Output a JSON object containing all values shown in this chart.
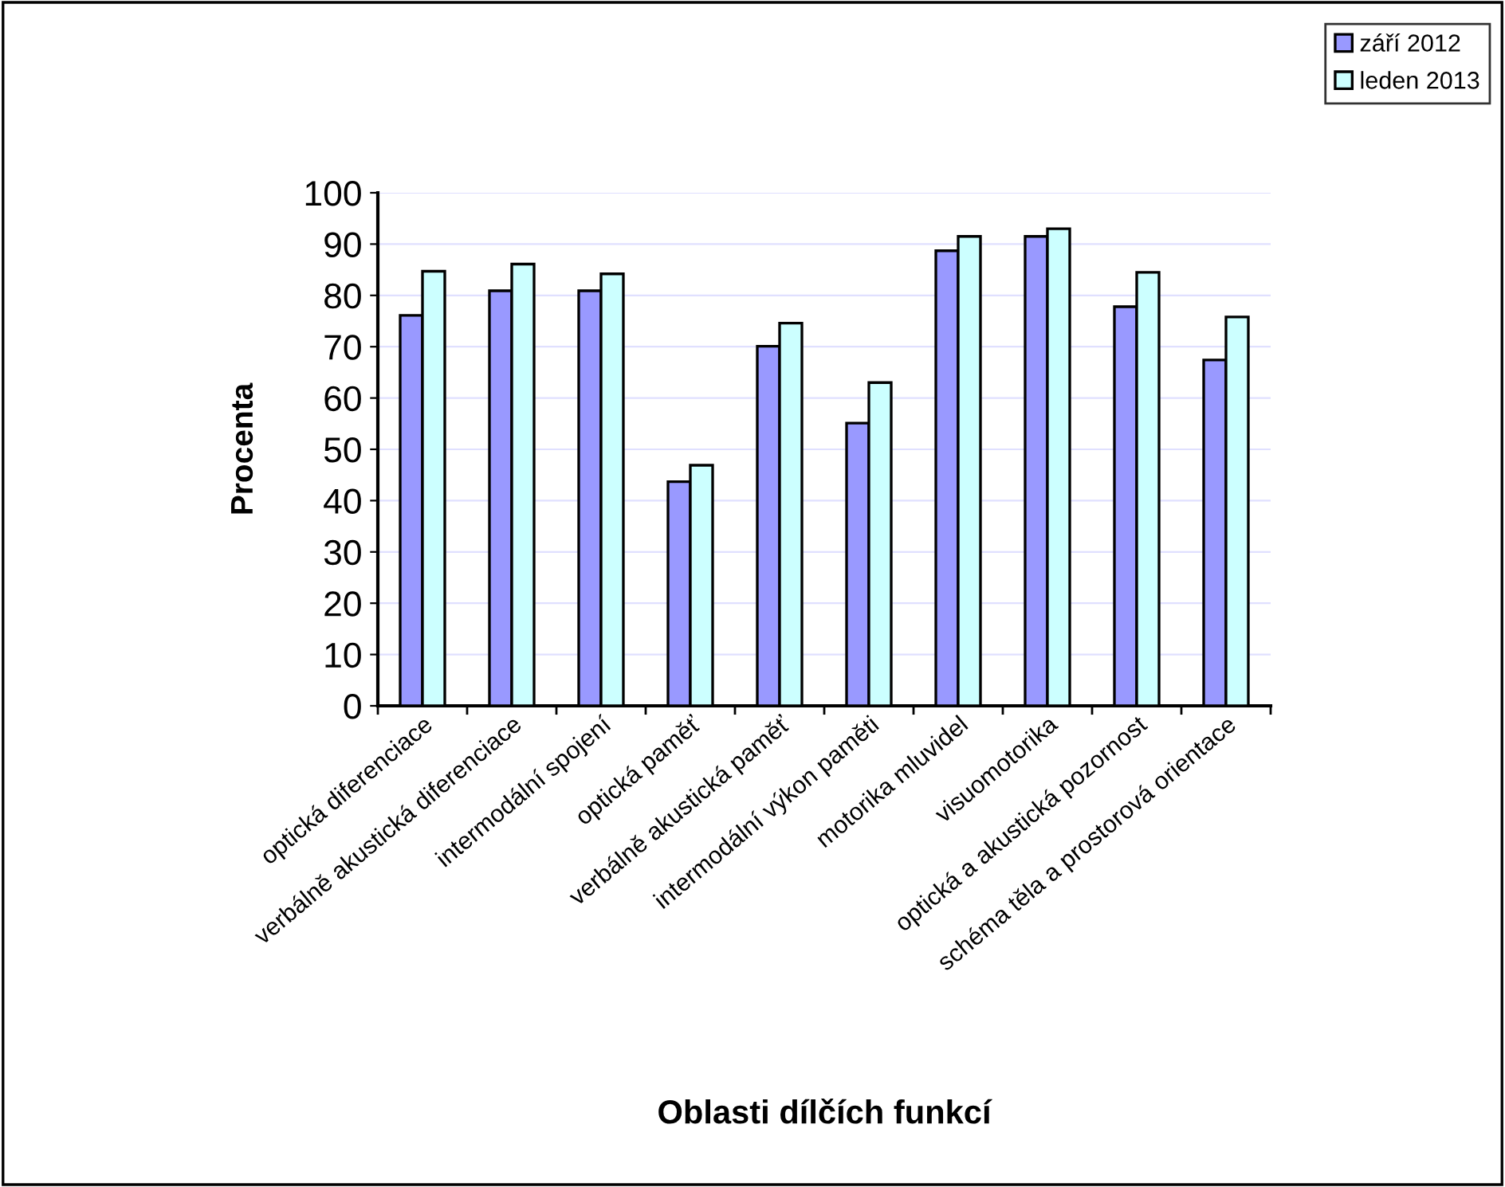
{
  "chart_data": {
    "type": "bar",
    "categories": [
      "optická diferenciace",
      "verbálně akustická diferenciace",
      "intermodální spojení",
      "optická paměť",
      "verbálně akustická paměť",
      "intermodální výkon paměti",
      "motorika mluvidel",
      "visuomotorika",
      "optická a akustická pozornost",
      "schéma těla a prostorová orientace"
    ],
    "series": [
      {
        "name": "září 2012",
        "color": "#9999ff",
        "values": [
          76.1,
          80.9,
          80.9,
          43.7,
          70.1,
          55.1,
          88.7,
          91.5,
          77.8,
          67.4
        ]
      },
      {
        "name": "leden 2013",
        "color": "#ccffff",
        "values": [
          84.7,
          86.1,
          84.2,
          46.9,
          74.6,
          63.0,
          91.5,
          93.0,
          84.5,
          75.8
        ]
      }
    ],
    "xlabel": "Oblasti dílčích funkcí",
    "ylabel": "Procenta",
    "ylim": [
      0,
      100
    ],
    "yticks": [
      0,
      10,
      20,
      30,
      40,
      50,
      60,
      70,
      80,
      90,
      100
    ],
    "grid": "y",
    "legend": "top right"
  }
}
